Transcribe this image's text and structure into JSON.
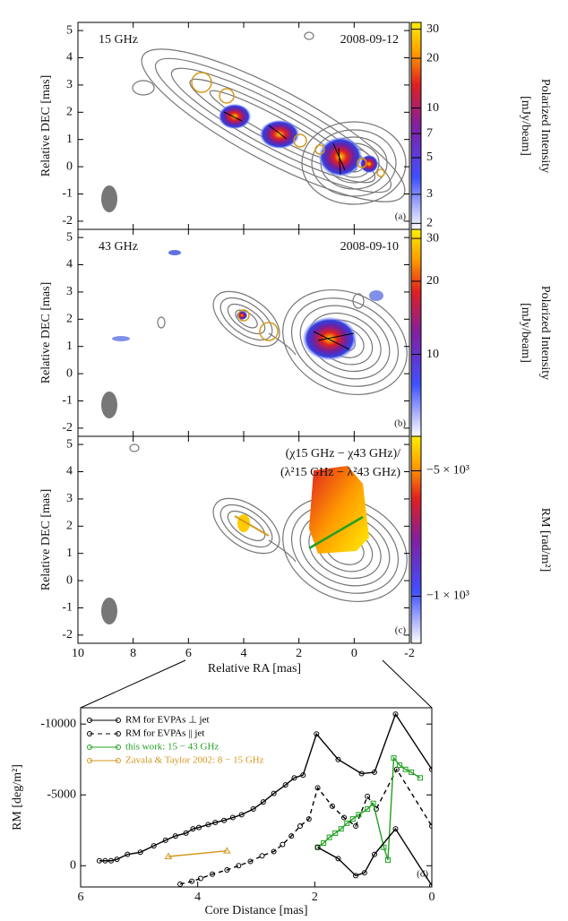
{
  "chart_data": [
    {
      "type": "contour",
      "frequency": "15 GHz",
      "date": "2008-09-12",
      "panel_label": "(a)",
      "ylabel": "Relative DEC [mas]",
      "xlim": [
        10,
        -2
      ],
      "xticks": [
        10,
        8,
        6,
        4,
        2,
        0,
        -2
      ],
      "show_xtick_labels": false,
      "ylim": [
        -2.3,
        5.3
      ],
      "yticks": [
        -2,
        -1,
        0,
        1,
        2,
        3,
        4,
        5
      ],
      "colorbar_label": [
        "Polarized Intensity",
        "[mJy/beam]"
      ],
      "clim": [
        1.84,
        33
      ],
      "clog": true,
      "cticks": [
        2,
        3,
        5,
        7,
        10,
        20,
        30
      ]
    },
    {
      "type": "contour",
      "frequency": "43 GHz",
      "date": "2008-09-10",
      "panel_label": "(b)",
      "ylabel": "Relative DEC [mas]",
      "xlim": [
        10,
        -2
      ],
      "xticks": [
        10,
        8,
        6,
        4,
        2,
        0,
        -2
      ],
      "show_xtick_labels": false,
      "ylim": [
        -2.3,
        5.3
      ],
      "yticks": [
        -2,
        -1,
        0,
        1,
        2,
        3,
        4,
        5
      ],
      "colorbar_label": [
        "Polarized Intensity",
        "[mJy/beam]"
      ],
      "clim": [
        4.6,
        32.7
      ],
      "clog": true,
      "cticks": [
        10,
        20,
        30
      ]
    },
    {
      "type": "contour",
      "formula": [
        "(χ15 GHz − χ43 GHz)/",
        "(λ²15 GHz − λ²43 GHz)"
      ],
      "panel_label": "(c)",
      "ylabel": "Relative DEC [mas]",
      "xlabel": "Relative RA [mas]",
      "xlim": [
        10,
        -2
      ],
      "xticks": [
        10,
        8,
        6,
        4,
        2,
        0,
        -2
      ],
      "show_xtick_labels": true,
      "ylim": [
        -2.3,
        5.3
      ],
      "yticks": [
        -2,
        -1,
        0,
        1,
        2,
        3,
        4,
        5
      ],
      "colorbar_label": [
        "RM [rad/m²]"
      ],
      "clim": [
        500,
        -6100
      ],
      "clog": false,
      "cticks": [
        {
          "value": -5000,
          "label": "−5 × 10³"
        },
        {
          "value": -1000,
          "label": "−1 × 10³"
        }
      ]
    },
    {
      "type": "line",
      "panel_label": "(d)",
      "xlabel": "Core Distance [mas]",
      "ylabel": "RM [deg/m²]",
      "xlim": [
        6,
        0
      ],
      "xticks": [
        6,
        4,
        2,
        0
      ],
      "ylim": [
        1500,
        -11150
      ],
      "yticks": [
        -10000,
        -5000,
        0
      ],
      "series": [
        {
          "name": "RM for EVPAs ⊥ jet",
          "color": "#000000",
          "dashed": false,
          "marker": "circle",
          "x": [
            5.68,
            5.58,
            5.48,
            5.38,
            5.2,
            4.98,
            4.75,
            4.55,
            4.38,
            4.2,
            4.08,
            3.98,
            3.82,
            3.7,
            3.55,
            3.4,
            3.25,
            3.05,
            2.88,
            2.7,
            2.5,
            2.35,
            2.2,
            1.97,
            1.6,
            1.2,
            0.98,
            0.62,
            0.0
          ],
          "values": [
            -350,
            -350,
            -350,
            -450,
            -800,
            -950,
            -1400,
            -1800,
            -2100,
            -2300,
            -2600,
            -2700,
            -2900,
            -3050,
            -3200,
            -3400,
            -3600,
            -4000,
            -4500,
            -5100,
            -5700,
            -6200,
            -6400,
            -9300,
            -7500,
            -6500,
            -6600,
            -10700,
            -6800
          ]
        },
        {
          "name": "RM for EVPAs || jet",
          "color": "#000000",
          "dashed": true,
          "marker": "circle",
          "x": [
            4.3,
            4.1,
            3.95,
            3.75,
            3.5,
            3.3,
            3.1,
            2.9,
            2.7,
            2.55,
            2.4,
            2.25,
            2.1,
            1.95,
            1.7,
            1.5,
            1.3,
            1.1,
            0.95,
            0.6,
            0.0
          ],
          "values": [
            1300,
            1100,
            900,
            600,
            300,
            0,
            -300,
            -700,
            -1000,
            -1500,
            -2100,
            -2800,
            -3300,
            -5500,
            -4200,
            -3400,
            -2800,
            -4900,
            -4000,
            -6800,
            -2800
          ]
        },
        {
          "name": "this work: 15 − 43 GHz",
          "color": "#22a022",
          "dashed": false,
          "marker": "square",
          "x": [
            1.95,
            1.85,
            1.75,
            1.65,
            1.55,
            1.45,
            1.35,
            1.25,
            1.1,
            1.0,
            0.82,
            0.75,
            0.65,
            0.55,
            0.45,
            0.35,
            0.2
          ],
          "values": [
            -1300,
            -1600,
            -2000,
            -2300,
            -2600,
            -3000,
            -3300,
            -3600,
            -4000,
            -4400,
            -1300,
            -400,
            -7600,
            -7100,
            -6800,
            -6600,
            -6200
          ]
        },
        {
          "name": "Zavala & Taylor 2002: 8 − 15 GHz",
          "color": "#d4961c",
          "dashed": false,
          "marker": "triangle",
          "x": [
            4.5,
            3.5
          ],
          "values": [
            -650,
            -1050
          ]
        },
        {
          "color": "#000000",
          "dashed": false,
          "marker": "circle",
          "x": [
            1.95,
            1.6,
            1.3,
            1.15,
            0.98,
            0.62,
            0.0
          ],
          "values": [
            -1300,
            -500,
            700,
            500,
            -800,
            -2600,
            1400
          ]
        }
      ]
    }
  ]
}
